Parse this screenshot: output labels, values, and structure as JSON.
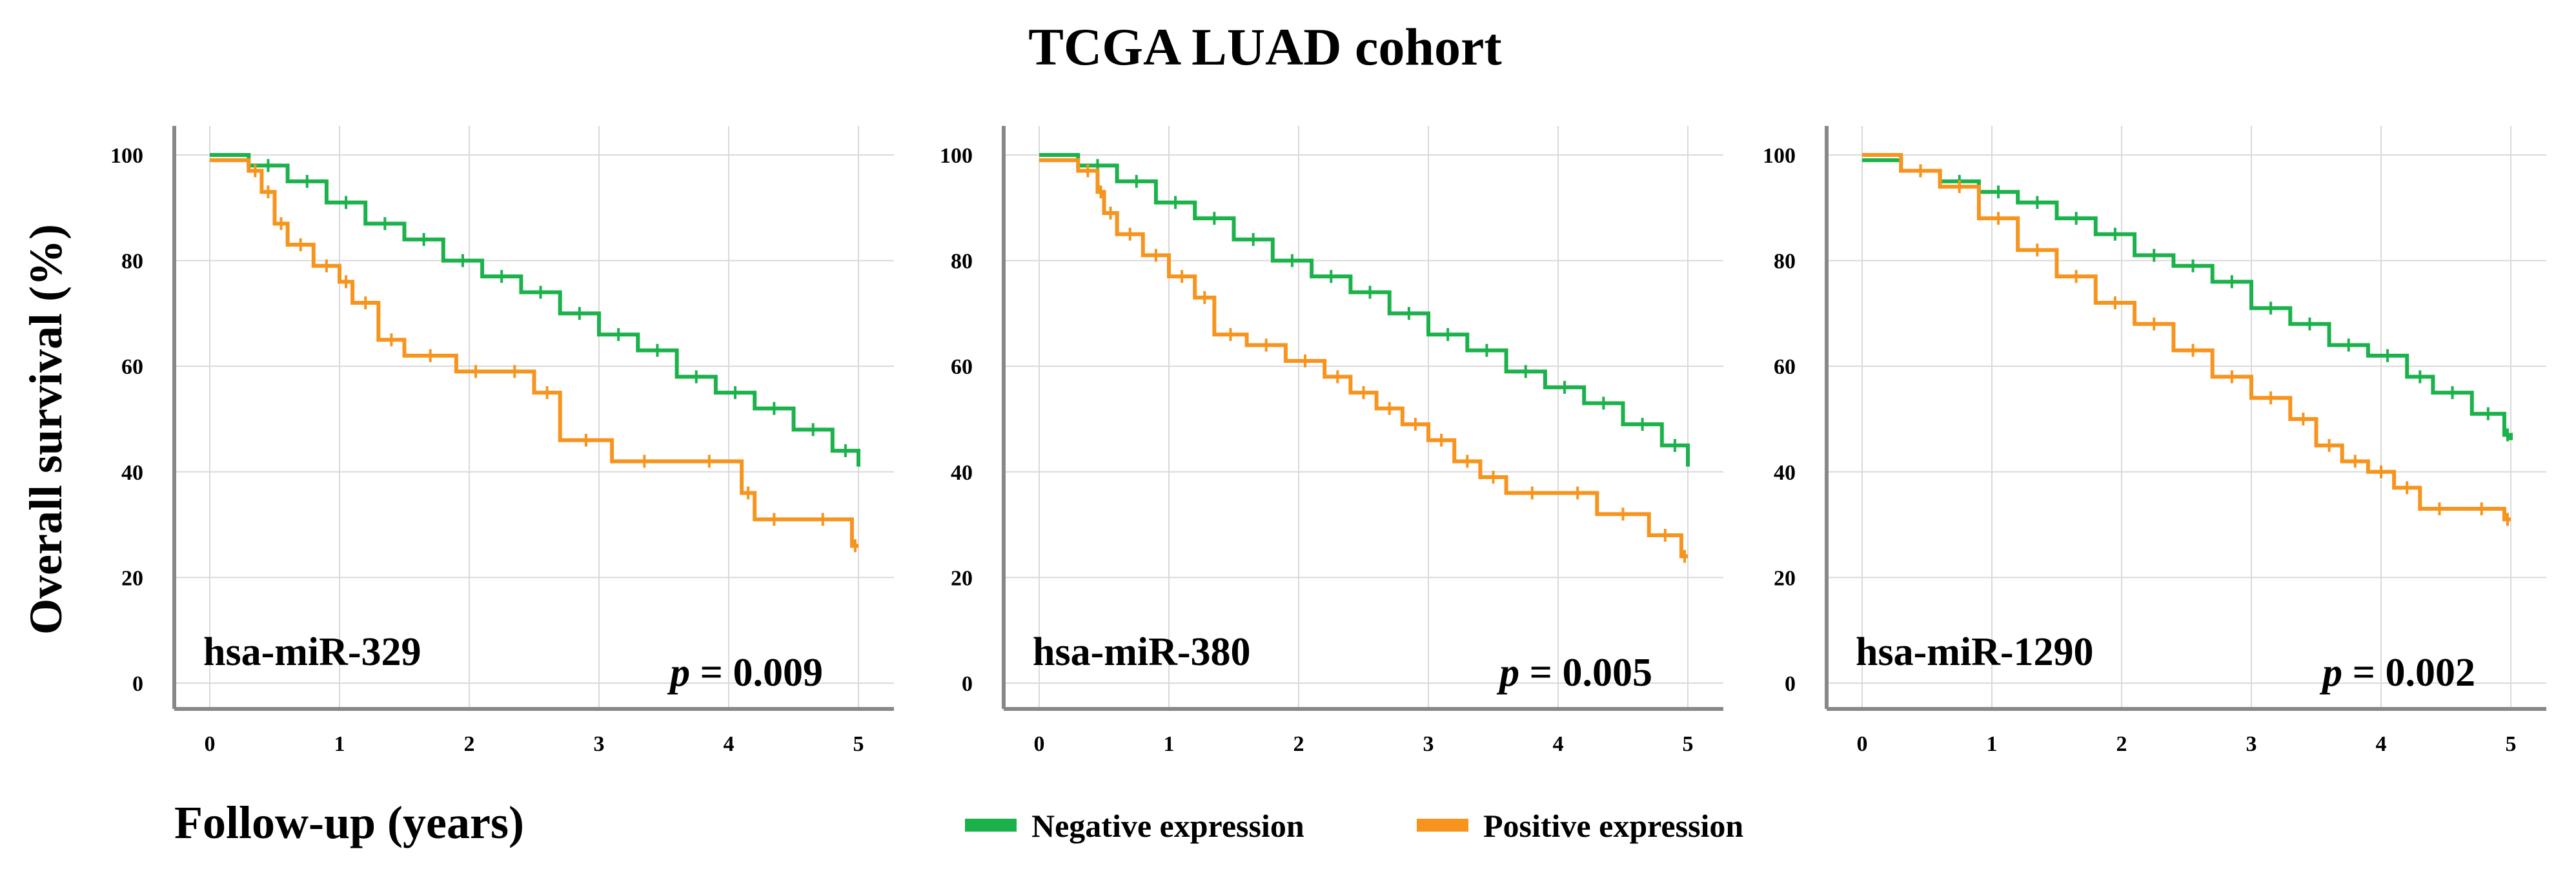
{
  "title": "TCGA LUAD cohort",
  "ylabel": "Overall survival (%)",
  "xlabel": "Follow-up (years)",
  "legend": [
    {
      "label": "Negative expression",
      "color": "#1bb24b"
    },
    {
      "label": "Positive expression",
      "color": "#f7941d"
    }
  ],
  "chart_data": [
    {
      "type": "line",
      "annotation": "hsa-miR-329",
      "p_symbol": "p",
      "p_value": "= 0.009",
      "xlim": [
        0,
        5
      ],
      "ylim": [
        0,
        100
      ],
      "x_ticks": [
        0,
        1,
        2,
        3,
        4,
        5
      ],
      "y_ticks": [
        0,
        20,
        40,
        60,
        80,
        100
      ],
      "grid": true,
      "series": [
        {
          "name": "Negative expression",
          "x": [
            0,
            0.3,
            0.6,
            0.9,
            1.2,
            1.5,
            1.8,
            2.1,
            2.4,
            2.7,
            3.0,
            3.3,
            3.6,
            3.9,
            4.2,
            4.5,
            4.8,
            5.0
          ],
          "y": [
            100,
            98,
            95,
            91,
            87,
            84,
            80,
            77,
            74,
            70,
            66,
            63,
            58,
            55,
            52,
            48,
            44,
            41
          ]
        },
        {
          "name": "Positive expression",
          "x": [
            0,
            0.3,
            0.4,
            0.5,
            0.6,
            0.8,
            1.0,
            1.1,
            1.3,
            1.5,
            1.9,
            2.2,
            2.5,
            2.7,
            3.1,
            3.6,
            4.1,
            4.2,
            4.5,
            4.95,
            5.0
          ],
          "y": [
            99,
            97,
            93,
            87,
            83,
            79,
            76,
            72,
            65,
            62,
            59,
            59,
            55,
            46,
            42,
            42,
            36,
            31,
            31,
            26,
            26
          ]
        }
      ]
    },
    {
      "type": "line",
      "annotation": "hsa-miR-380",
      "p_symbol": "p",
      "p_value": "= 0.005",
      "xlim": [
        0,
        5
      ],
      "ylim": [
        0,
        100
      ],
      "x_ticks": [
        0,
        1,
        2,
        3,
        4,
        5
      ],
      "y_ticks": [
        0,
        20,
        40,
        60,
        80,
        100
      ],
      "grid": true,
      "series": [
        {
          "name": "Negative expression",
          "x": [
            0,
            0.3,
            0.6,
            0.9,
            1.2,
            1.5,
            1.8,
            2.1,
            2.4,
            2.7,
            3.0,
            3.3,
            3.6,
            3.9,
            4.2,
            4.5,
            4.8,
            5.0
          ],
          "y": [
            100,
            98,
            95,
            91,
            88,
            84,
            80,
            77,
            74,
            70,
            66,
            63,
            59,
            56,
            53,
            49,
            45,
            41
          ]
        },
        {
          "name": "Positive expression",
          "x": [
            0,
            0.3,
            0.45,
            0.5,
            0.6,
            0.8,
            1.0,
            1.2,
            1.35,
            1.6,
            1.9,
            2.2,
            2.4,
            2.6,
            2.8,
            3.0,
            3.2,
            3.4,
            3.6,
            4.0,
            4.3,
            4.7,
            4.95,
            5.0
          ],
          "y": [
            99,
            97,
            93,
            89,
            85,
            81,
            77,
            73,
            66,
            64,
            61,
            58,
            55,
            52,
            49,
            46,
            42,
            39,
            36,
            36,
            32,
            28,
            24,
            24
          ]
        }
      ]
    },
    {
      "type": "line",
      "annotation": "hsa-miR-1290",
      "p_symbol": "p",
      "p_value": "= 0.002",
      "xlim": [
        0,
        5
      ],
      "ylim": [
        0,
        100
      ],
      "x_ticks": [
        0,
        1,
        2,
        3,
        4,
        5
      ],
      "y_ticks": [
        0,
        20,
        40,
        60,
        80,
        100
      ],
      "grid": true,
      "series": [
        {
          "name": "Negative expression",
          "x": [
            0,
            0.3,
            0.6,
            0.9,
            1.2,
            1.5,
            1.8,
            2.1,
            2.4,
            2.7,
            3.0,
            3.3,
            3.6,
            3.9,
            4.2,
            4.4,
            4.7,
            4.95,
            5.0
          ],
          "y": [
            99,
            97,
            95,
            93,
            91,
            88,
            85,
            81,
            79,
            76,
            71,
            68,
            64,
            62,
            58,
            55,
            51,
            47,
            46
          ]
        },
        {
          "name": "Positive expression",
          "x": [
            0,
            0.3,
            0.6,
            0.9,
            1.2,
            1.5,
            1.8,
            2.1,
            2.4,
            2.7,
            3.0,
            3.3,
            3.5,
            3.7,
            3.9,
            4.1,
            4.3,
            4.6,
            4.95,
            5.0
          ],
          "y": [
            100,
            97,
            94,
            88,
            82,
            77,
            72,
            68,
            63,
            58,
            54,
            50,
            45,
            42,
            40,
            37,
            33,
            33,
            31,
            31
          ]
        }
      ]
    }
  ]
}
